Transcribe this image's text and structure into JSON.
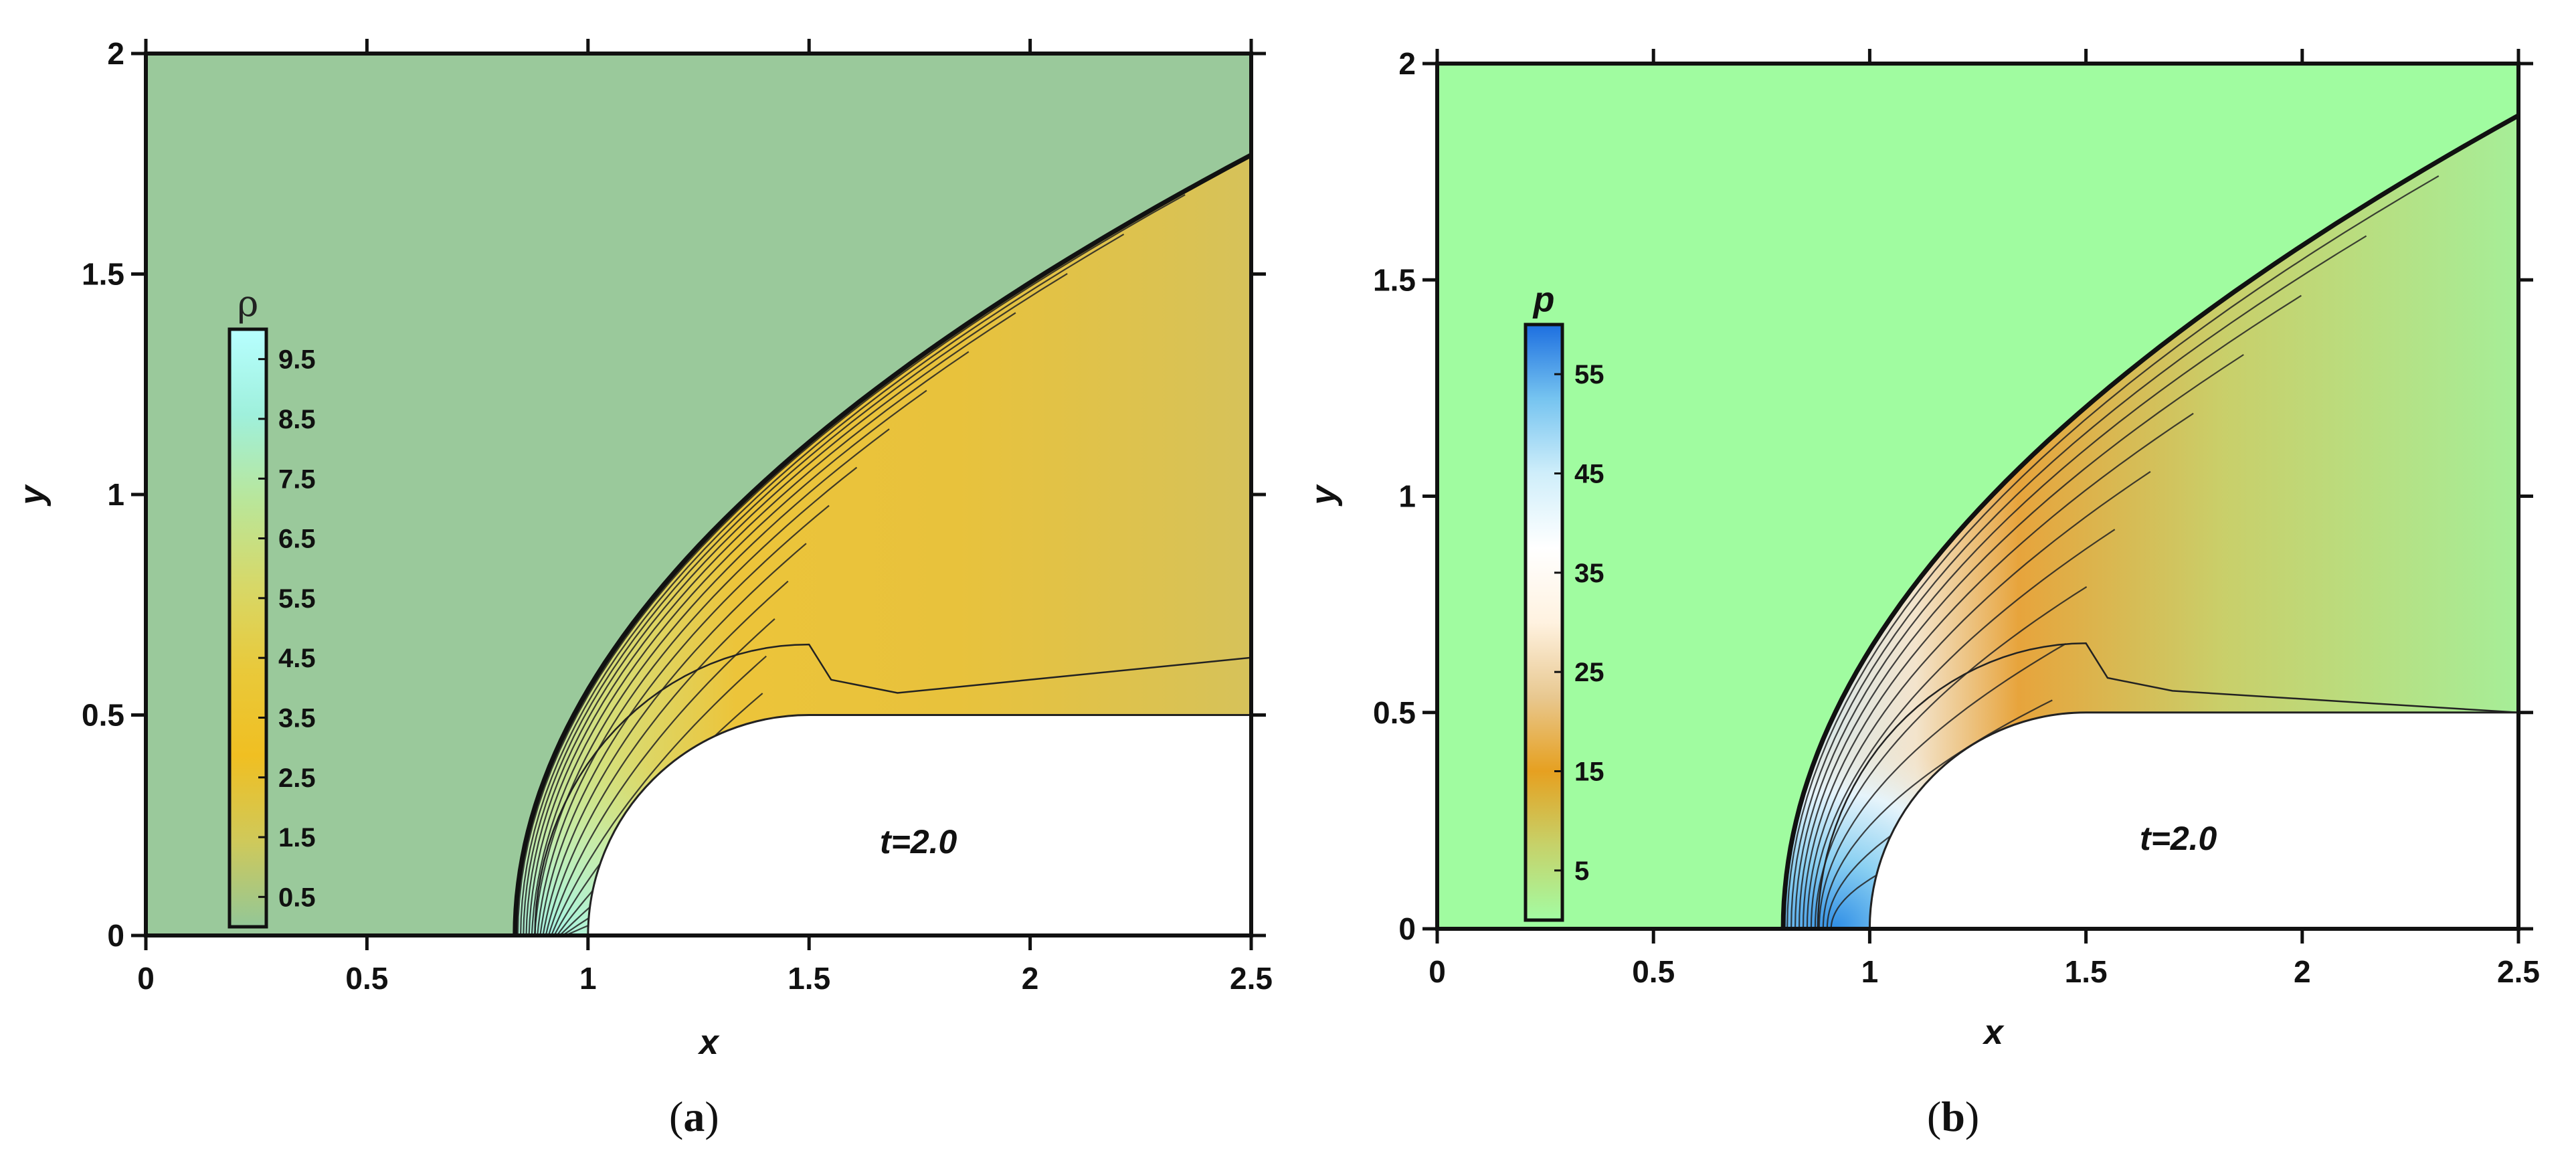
{
  "chart_data": [
    {
      "type": "heatmap",
      "panel_label": "a",
      "variable": "ρ",
      "annotation": "t=2.0",
      "xlabel": "x",
      "ylabel": "y",
      "xlim": [
        0,
        2.5
      ],
      "ylim": [
        0,
        2
      ],
      "xticks": [
        "0",
        "0.5",
        "1",
        "1.5",
        "2",
        "2.5"
      ],
      "yticks": [
        "0",
        "0.5",
        "1",
        "1.5",
        "2"
      ],
      "colorbar": {
        "title": "ρ",
        "range": [
          0,
          10
        ],
        "ticks": [
          "0.5",
          "1.5",
          "2.5",
          "3.5",
          "4.5",
          "5.5",
          "6.5",
          "7.5",
          "8.5",
          "9.5"
        ],
        "colors": [
          "#93c797",
          "#cfc95a",
          "#f0bf22",
          "#e9c93a",
          "#d7d868",
          "#b9e69a",
          "#9ff0dc",
          "#b7ffff"
        ]
      },
      "background_color": "#9ac99b",
      "shock_color": "#111111",
      "body": {
        "cylinder_radius": 0.5,
        "center_x": 1.5,
        "center_y": 0,
        "extends_to_x": 2.5
      }
    },
    {
      "type": "heatmap",
      "panel_label": "b",
      "variable": "p",
      "annotation": "t=2.0",
      "xlabel": "x",
      "ylabel": "y",
      "xlim": [
        0,
        2.5
      ],
      "ylim": [
        0,
        2
      ],
      "xticks": [
        "0",
        "0.5",
        "1",
        "1.5",
        "2",
        "2.5"
      ],
      "yticks": [
        "0",
        "0.5",
        "1",
        "1.5",
        "2"
      ],
      "colorbar": {
        "title": "p",
        "range": [
          0,
          60
        ],
        "ticks": [
          "5",
          "15",
          "25",
          "35",
          "45",
          "55"
        ],
        "colors": [
          "#a3fca3",
          "#c6d26a",
          "#e6a020",
          "#e8c890",
          "#fff2e0",
          "#ffffff",
          "#cfeefa",
          "#76c4f0",
          "#1d6fe0"
        ]
      },
      "background_color": "#a0fca0",
      "shock_color": "#111111",
      "body": {
        "cylinder_radius": 0.5,
        "center_x": 1.5,
        "center_y": 0,
        "extends_to_x": 2.5
      }
    }
  ]
}
